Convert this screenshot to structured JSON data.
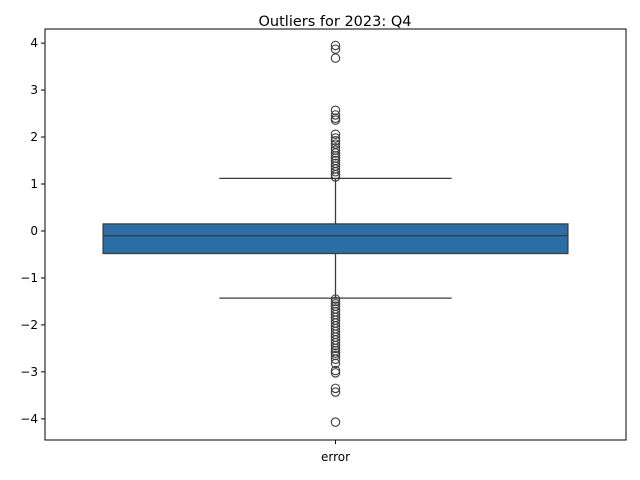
{
  "chart_data": {
    "type": "box",
    "title": "Outliers for 2023: Q4",
    "xlabel": "",
    "ylabel": "",
    "categories": [
      "error"
    ],
    "ylim": [
      -4.45,
      4.3
    ],
    "yticks": [
      4,
      3,
      2,
      1,
      0,
      -1,
      -2,
      -3,
      -4
    ],
    "ytick_labels": [
      "4",
      "3",
      "2",
      "1",
      "0",
      "−1",
      "−2",
      "−3",
      "−4"
    ],
    "grid": false,
    "box_color": "#2a6ea5",
    "line_color": "#3d3d3d",
    "series": [
      {
        "category": "error",
        "whisker_low": -1.43,
        "q1": -0.48,
        "median": -0.1,
        "q3": 0.15,
        "whisker_high": 1.12,
        "outliers": [
          3.95,
          3.87,
          3.68,
          2.57,
          2.47,
          2.4,
          2.36,
          2.06,
          1.98,
          1.92,
          1.85,
          1.77,
          1.72,
          1.66,
          1.6,
          1.55,
          1.5,
          1.44,
          1.38,
          1.32,
          1.26,
          1.2,
          1.15,
          -1.45,
          -1.5,
          -1.55,
          -1.6,
          -1.66,
          -1.72,
          -1.78,
          -1.84,
          -1.9,
          -1.96,
          -2.02,
          -2.08,
          -2.14,
          -2.2,
          -2.26,
          -2.32,
          -2.38,
          -2.44,
          -2.5,
          -2.55,
          -2.6,
          -2.65,
          -2.73,
          -2.82,
          -2.97,
          -3.02,
          -3.35,
          -3.43,
          -4.07
        ]
      }
    ]
  }
}
